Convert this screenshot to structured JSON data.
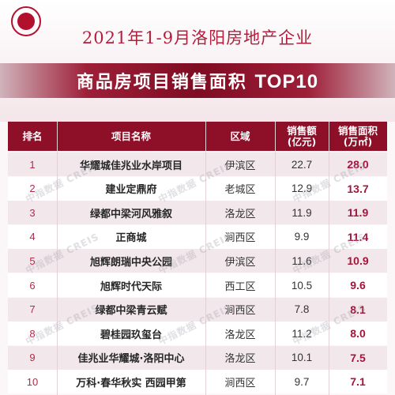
{
  "header": {
    "logo_icon": "company-seal-icon",
    "title_line1": "2021年1-9月洛阳房地产企业",
    "title_line2_prefix": "商品房项目销售面积",
    "title_line2_tag": "TOP10"
  },
  "colors": {
    "accent": "#8d0f28",
    "rank_text": "#b3294a",
    "volume_text": "#a3153b",
    "row_alt": "#f2e8eb"
  },
  "watermark_text": "中指数据 CREIS",
  "chart_data": {
    "type": "table",
    "columns": [
      {
        "key": "rank",
        "label": "排名"
      },
      {
        "key": "name",
        "label": "项目名称"
      },
      {
        "key": "district",
        "label": "区域"
      },
      {
        "key": "sales",
        "label_line1": "销售额",
        "label_line2": "(亿元)"
      },
      {
        "key": "area",
        "label_line1": "销售面积",
        "label_line2": "(万㎡)"
      }
    ],
    "rows": [
      {
        "rank": "1",
        "name": "华耀城佳兆业水岸项目",
        "district": "伊滨区",
        "sales": "22.7",
        "area": "28.0"
      },
      {
        "rank": "2",
        "name": "建业定鼎府",
        "district": "老城区",
        "sales": "12.9",
        "area": "13.7"
      },
      {
        "rank": "3",
        "name": "绿都中梁河风雅叙",
        "district": "洛龙区",
        "sales": "11.9",
        "area": "11.9"
      },
      {
        "rank": "4",
        "name": "正商城",
        "district": "涧西区",
        "sales": "9.9",
        "area": "11.4"
      },
      {
        "rank": "5",
        "name": "旭辉朗瑞中央公园",
        "district": "伊滨区",
        "sales": "11.6",
        "area": "10.9"
      },
      {
        "rank": "6",
        "name": "旭辉时代天际",
        "district": "西工区",
        "sales": "10.5",
        "area": "9.6"
      },
      {
        "rank": "7",
        "name": "绿都中梁青云赋",
        "district": "涧西区",
        "sales": "7.8",
        "area": "8.1"
      },
      {
        "rank": "8",
        "name": "碧桂园玖玺台",
        "district": "洛龙区",
        "sales": "11.2",
        "area": "8.0"
      },
      {
        "rank": "9",
        "name": "佳兆业华耀城·洛阳中心",
        "district": "洛龙区",
        "sales": "10.1",
        "area": "7.5"
      },
      {
        "rank": "10",
        "name": "万科·春华秋实 西园甲第",
        "district": "涧西区",
        "sales": "9.7",
        "area": "7.1"
      }
    ]
  }
}
